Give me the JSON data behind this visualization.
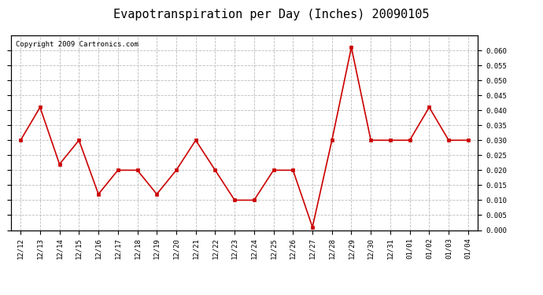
{
  "title": "Evapotranspiration per Day (Inches) 20090105",
  "copyright_text": "Copyright 2009 Cartronics.com",
  "x_labels": [
    "12/12",
    "12/13",
    "12/14",
    "12/15",
    "12/16",
    "12/17",
    "12/18",
    "12/19",
    "12/20",
    "12/21",
    "12/22",
    "12/23",
    "12/24",
    "12/25",
    "12/26",
    "12/27",
    "12/28",
    "12/29",
    "12/30",
    "12/31",
    "01/01",
    "01/02",
    "01/03",
    "01/04"
  ],
  "y_values": [
    0.03,
    0.041,
    0.022,
    0.03,
    0.012,
    0.02,
    0.02,
    0.012,
    0.02,
    0.03,
    0.02,
    0.01,
    0.01,
    0.02,
    0.02,
    0.001,
    0.03,
    0.061,
    0.03,
    0.03,
    0.03,
    0.041,
    0.03,
    0.03
  ],
  "line_color": "#cc0000",
  "marker": "s",
  "marker_size": 2.5,
  "line_width": 1.2,
  "bg_color": "#ffffff",
  "plot_bg_color": "#ffffff",
  "grid_color": "#bbbbbb",
  "ylim": [
    0.0,
    0.065
  ],
  "yticks": [
    0.0,
    0.005,
    0.01,
    0.015,
    0.02,
    0.025,
    0.03,
    0.035,
    0.04,
    0.045,
    0.05,
    0.055,
    0.06
  ],
  "title_fontsize": 11,
  "copyright_fontsize": 6.5,
  "tick_fontsize": 6.5,
  "tick_fontfamily": "monospace"
}
